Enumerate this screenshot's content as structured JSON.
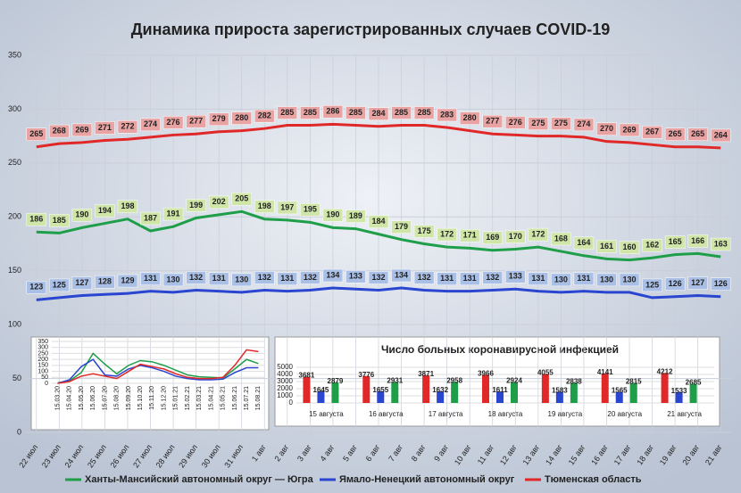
{
  "chart_data": [
    {
      "type": "line",
      "title": "Динамика прироста зарегистрированных случаев COVID-19",
      "categories": [
        "22 июл",
        "23 июл",
        "24 июл",
        "25 июл",
        "26 июл",
        "27 июл",
        "28 июл",
        "29 июл",
        "30 июл",
        "31 июл",
        "1 авг",
        "2 авг",
        "3 авг",
        "4 авг",
        "5 авг",
        "6 авг",
        "7 авг",
        "8 авг",
        "9 авг",
        "10 авг",
        "11 авг",
        "12 авг",
        "13 авг",
        "14 авг",
        "15 авг",
        "16 авг",
        "17 авг",
        "18 авг",
        "19 авг",
        "20 авг",
        "21 авг"
      ],
      "series": [
        {
          "name": "Ханты-Мансийский автономный округ — Югра",
          "color": "#1f9e4a",
          "label_color": "#cfe6a8",
          "values": [
            186,
            185,
            190,
            194,
            198,
            187,
            191,
            199,
            202,
            205,
            198,
            197,
            195,
            190,
            189,
            184,
            179,
            175,
            172,
            171,
            169,
            170,
            172,
            168,
            164,
            161,
            160,
            162,
            165,
            166,
            163
          ]
        },
        {
          "name": "Ямало-Ненецкий автономный округ",
          "color": "#2a45d0",
          "label_color": "#a9bfe6",
          "values": [
            123,
            125,
            127,
            128,
            129,
            131,
            130,
            132,
            131,
            130,
            132,
            131,
            132,
            134,
            133,
            132,
            134,
            132,
            131,
            131,
            132,
            133,
            131,
            130,
            131,
            130,
            130,
            125,
            126,
            127,
            126
          ]
        },
        {
          "name": "Тюменская область",
          "color": "#e02828",
          "label_color": "#eaa3a3",
          "values": [
            265,
            268,
            269,
            271,
            272,
            274,
            276,
            277,
            279,
            280,
            282,
            285,
            285,
            286,
            285,
            284,
            285,
            285,
            283,
            280,
            277,
            276,
            275,
            275,
            274,
            270,
            269,
            267,
            265,
            265,
            264
          ]
        }
      ],
      "ylim": [
        0,
        350
      ],
      "yticks": [
        0,
        50,
        100,
        150,
        200,
        250,
        300,
        350
      ],
      "grid": true,
      "data_labels": true
    },
    {
      "type": "line",
      "categories": [
        "15.03.20",
        "15.04.20",
        "15.05.20",
        "15.06.20",
        "15.07.20",
        "15.08.20",
        "15.09.20",
        "15.10.20",
        "15.11.20",
        "15.12.20",
        "15.01.21",
        "15.02.21",
        "15.03.21",
        "15.04.21",
        "15.05.21",
        "15.06.21",
        "15.07.21",
        "15.08.21"
      ],
      "series": [
        {
          "color": "#1f9e4a",
          "values": [
            5,
            20,
            90,
            250,
            160,
            80,
            150,
            190,
            180,
            150,
            110,
            70,
            55,
            50,
            45,
            120,
            200,
            165
          ]
        },
        {
          "color": "#2a45d0",
          "values": [
            0,
            30,
            140,
            200,
            70,
            60,
            120,
            150,
            130,
            100,
            60,
            40,
            30,
            30,
            35,
            90,
            130,
            130
          ]
        },
        {
          "color": "#e02828",
          "values": [
            0,
            15,
            60,
            80,
            60,
            40,
            100,
            160,
            140,
            120,
            80,
            50,
            40,
            40,
            50,
            150,
            280,
            265
          ]
        }
      ],
      "ylim": [
        0,
        350
      ],
      "yticks": [
        0,
        50,
        100,
        150,
        200,
        250,
        300,
        350
      ],
      "grid": true,
      "data_labels": false
    },
    {
      "type": "bar",
      "title": "Число больных коронавирусной  инфекцией",
      "categories": [
        "15 августа",
        "16 августа",
        "17 августа",
        "18 августа",
        "19 августа",
        "20 августа",
        "21 августа"
      ],
      "series": [
        {
          "color": "#e02828",
          "values": [
            3681,
            3776,
            3871,
            3966,
            4055,
            4141,
            4212
          ]
        },
        {
          "color": "#2a45d0",
          "values": [
            1645,
            1655,
            1632,
            1611,
            1583,
            1565,
            1533
          ]
        },
        {
          "color": "#1f9e4a",
          "values": [
            2879,
            2931,
            2958,
            2924,
            2838,
            2815,
            2685
          ]
        }
      ],
      "ylim": [
        0,
        5000
      ],
      "yticks": [
        0,
        1000,
        2000,
        3000,
        4000,
        5000
      ],
      "grid": true,
      "data_labels": true
    }
  ]
}
